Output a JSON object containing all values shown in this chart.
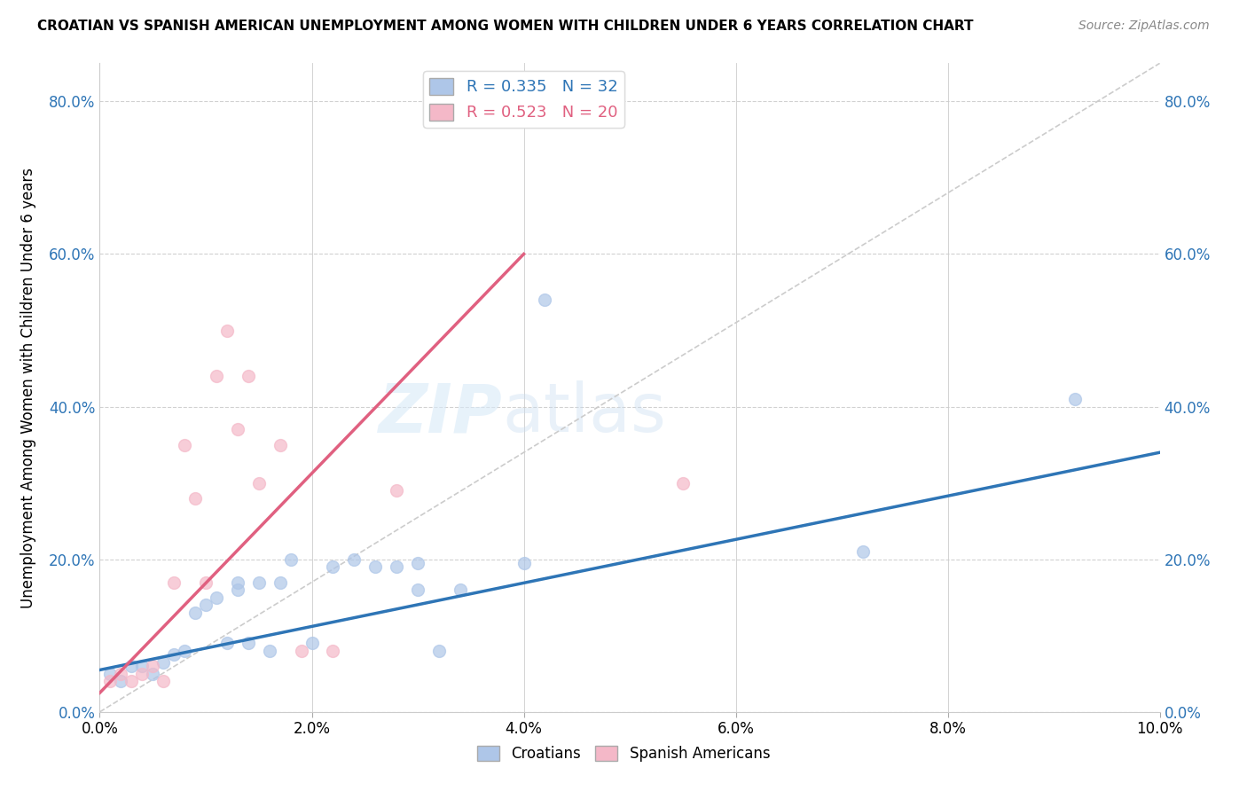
{
  "title": "CROATIAN VS SPANISH AMERICAN UNEMPLOYMENT AMONG WOMEN WITH CHILDREN UNDER 6 YEARS CORRELATION CHART",
  "source": "Source: ZipAtlas.com",
  "ylabel": "Unemployment Among Women with Children Under 6 years",
  "xlim": [
    0.0,
    0.1
  ],
  "ylim": [
    0.0,
    0.85
  ],
  "x_ticks": [
    0.0,
    0.02,
    0.04,
    0.06,
    0.08,
    0.1
  ],
  "y_ticks": [
    0.0,
    0.2,
    0.4,
    0.6,
    0.8
  ],
  "croatian_R": 0.335,
  "croatian_N": 32,
  "spanish_R": 0.523,
  "spanish_N": 20,
  "croatian_color": "#aec6e8",
  "croatian_line_color": "#2e75b6",
  "spanish_color": "#f4b8c8",
  "spanish_line_color": "#e06080",
  "diagonal_color": "#cccccc",
  "watermark_zip": "ZIP",
  "watermark_atlas": "atlas",
  "croatian_line_x": [
    0.0,
    0.1
  ],
  "croatian_line_y": [
    0.055,
    0.34
  ],
  "spanish_line_x": [
    0.0,
    0.04
  ],
  "spanish_line_y": [
    0.025,
    0.6
  ],
  "croatian_points_x": [
    0.001,
    0.002,
    0.003,
    0.004,
    0.005,
    0.006,
    0.007,
    0.008,
    0.009,
    0.01,
    0.011,
    0.012,
    0.013,
    0.013,
    0.014,
    0.015,
    0.016,
    0.017,
    0.018,
    0.02,
    0.022,
    0.024,
    0.026,
    0.028,
    0.03,
    0.03,
    0.032,
    0.034,
    0.04,
    0.042,
    0.072,
    0.092
  ],
  "croatian_points_y": [
    0.05,
    0.04,
    0.06,
    0.06,
    0.05,
    0.065,
    0.075,
    0.08,
    0.13,
    0.14,
    0.15,
    0.09,
    0.16,
    0.17,
    0.09,
    0.17,
    0.08,
    0.17,
    0.2,
    0.09,
    0.19,
    0.2,
    0.19,
    0.19,
    0.195,
    0.16,
    0.08,
    0.16,
    0.195,
    0.54,
    0.21,
    0.41
  ],
  "spanish_points_x": [
    0.001,
    0.002,
    0.003,
    0.004,
    0.005,
    0.006,
    0.007,
    0.008,
    0.009,
    0.01,
    0.011,
    0.012,
    0.013,
    0.014,
    0.015,
    0.017,
    0.019,
    0.022,
    0.028,
    0.055
  ],
  "spanish_points_y": [
    0.04,
    0.05,
    0.04,
    0.05,
    0.06,
    0.04,
    0.17,
    0.35,
    0.28,
    0.17,
    0.44,
    0.5,
    0.37,
    0.44,
    0.3,
    0.35,
    0.08,
    0.08,
    0.29,
    0.3
  ],
  "background_color": "#ffffff"
}
